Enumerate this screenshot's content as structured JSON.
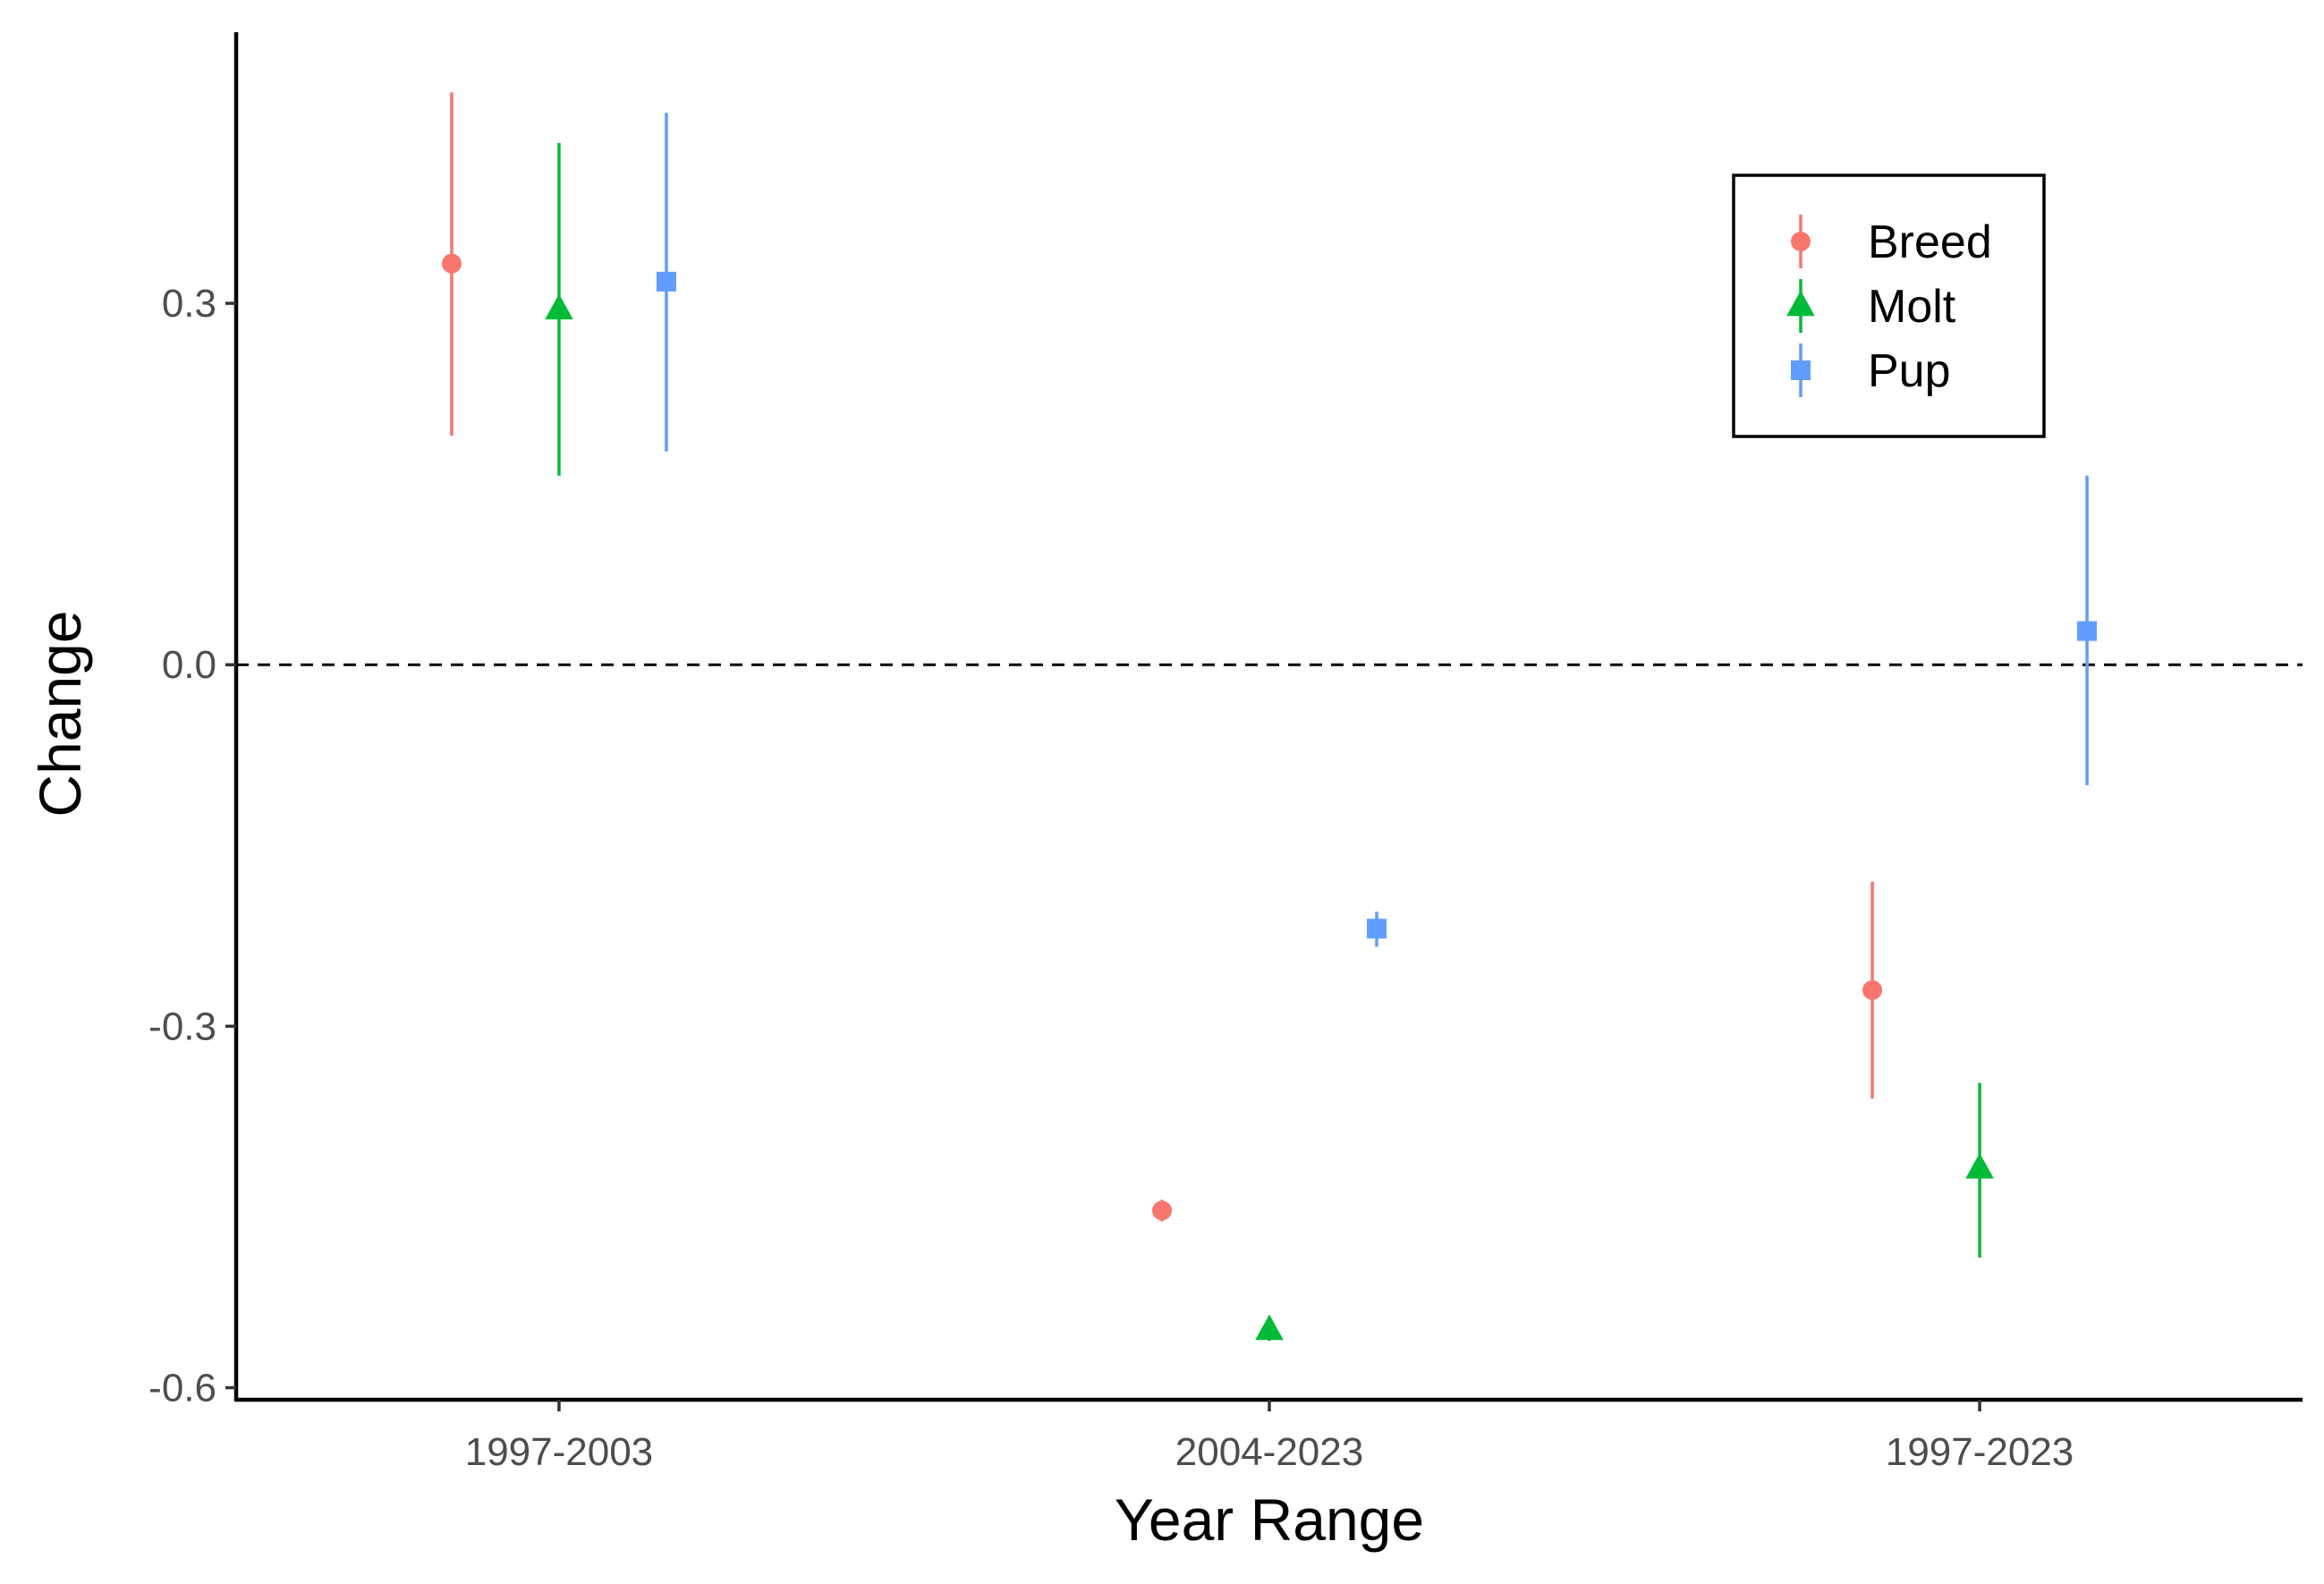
{
  "chart_data": {
    "type": "scatter",
    "subtype": "point-range",
    "xlabel": "Year Range",
    "ylabel": "Change",
    "categories": [
      "1997-2003",
      "2004-2023",
      "1997-2023"
    ],
    "ylim": [
      -0.61,
      0.525
    ],
    "yticks": [
      0.3,
      0.0,
      -0.3,
      -0.6
    ],
    "ytick_labels": [
      "0.3",
      "0.0",
      "-0.3",
      "-0.6"
    ],
    "reference_line": {
      "y": 0,
      "style": "dashed"
    },
    "grid": false,
    "legend": {
      "position": "top-right",
      "frame": true
    },
    "series": [
      {
        "name": "Breed",
        "color": "#F8766D",
        "marker": "circle",
        "points": [
          {
            "category": "1997-2003",
            "y": 0.333,
            "lower": 0.19,
            "upper": 0.475
          },
          {
            "category": "2004-2023",
            "y": -0.453,
            "lower": -0.462,
            "upper": -0.444
          },
          {
            "category": "1997-2023",
            "y": -0.27,
            "lower": -0.36,
            "upper": -0.18
          }
        ]
      },
      {
        "name": "Molt",
        "color": "#00BA38",
        "marker": "triangle",
        "points": [
          {
            "category": "1997-2003",
            "y": 0.295,
            "lower": 0.157,
            "upper": 0.433
          },
          {
            "category": "2004-2023",
            "y": -0.552,
            "lower": -0.561,
            "upper": -0.543
          },
          {
            "category": "1997-2023",
            "y": -0.418,
            "lower": -0.492,
            "upper": -0.347
          }
        ]
      },
      {
        "name": "Pup",
        "color": "#619CFF",
        "marker": "square",
        "points": [
          {
            "category": "1997-2003",
            "y": 0.318,
            "lower": 0.177,
            "upper": 0.458
          },
          {
            "category": "2004-2023",
            "y": -0.219,
            "lower": -0.234,
            "upper": -0.205
          },
          {
            "category": "1997-2023",
            "y": 0.028,
            "lower": -0.1,
            "upper": 0.157
          }
        ]
      }
    ]
  }
}
